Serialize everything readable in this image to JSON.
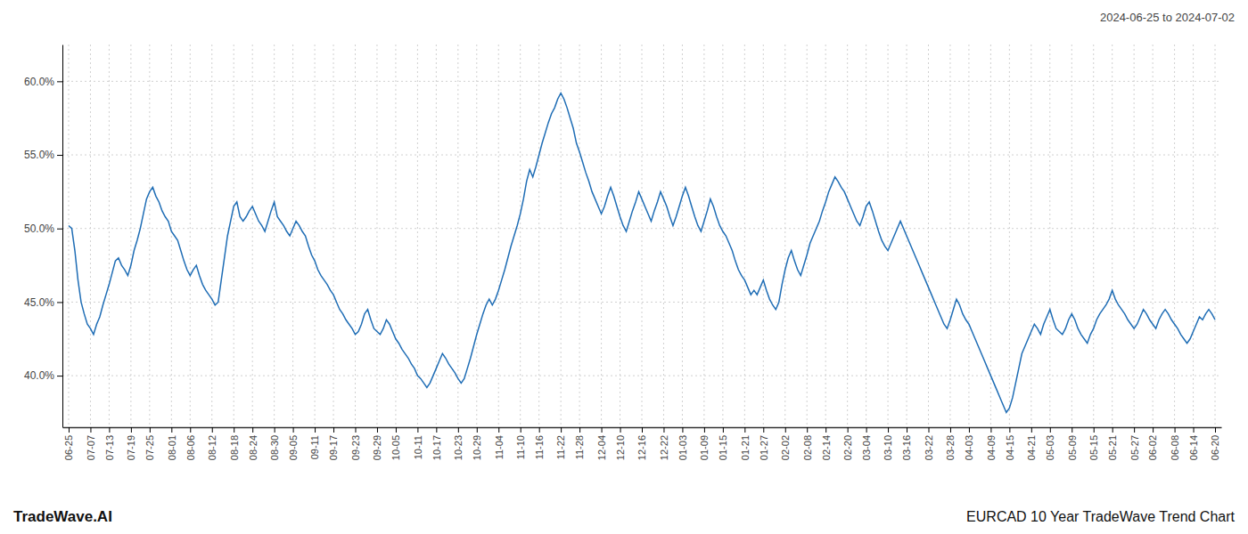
{
  "chart_data": {
    "type": "line",
    "title": "EURCAD 10 Year TradeWave Trend Chart",
    "subtitle": "2024-06-25 to 2024-07-02",
    "annotations": [
      "TradeWave.AI"
    ],
    "color": "#1f6db5",
    "grid": true,
    "ylim": [
      36.5,
      62.5
    ],
    "yticks": [
      {
        "value": 40.0,
        "label": "40.0%"
      },
      {
        "value": 45.0,
        "label": "45.0%"
      },
      {
        "value": 50.0,
        "label": "50.0%"
      },
      {
        "value": 55.0,
        "label": "55.0%"
      },
      {
        "value": 60.0,
        "label": "60.0%"
      }
    ],
    "categories": [
      "06-25",
      null,
      null,
      null,
      null,
      null,
      null,
      "07-07",
      null,
      null,
      null,
      null,
      null,
      "07-13",
      null,
      null,
      null,
      null,
      null,
      null,
      "07-19",
      null,
      null,
      null,
      null,
      null,
      "07-25",
      null,
      null,
      null,
      null,
      null,
      null,
      "08-01",
      null,
      null,
      null,
      null,
      null,
      "08-06",
      null,
      null,
      null,
      null,
      null,
      null,
      "08-12",
      null,
      null,
      null,
      null,
      null,
      null,
      "08-18",
      null,
      null,
      null,
      null,
      null,
      "08-24",
      null,
      null,
      null,
      null,
      null,
      null,
      "08-30",
      null,
      null,
      null,
      null,
      null,
      "09-05",
      null,
      null,
      null,
      null,
      null,
      null,
      "09-11",
      null,
      null,
      null,
      null,
      null,
      "09-17",
      null,
      null,
      null,
      null,
      null,
      null,
      "09-23",
      null,
      null,
      null,
      null,
      null,
      null,
      "09-29",
      null,
      null,
      null,
      null,
      null,
      "10-05",
      null,
      null,
      null,
      null,
      null,
      null,
      "10-11",
      null,
      null,
      null,
      null,
      null,
      "10-17",
      null,
      null,
      null,
      null,
      null,
      null,
      "10-23",
      null,
      null,
      null,
      null,
      null,
      "10-29",
      null,
      null,
      null,
      null,
      null,
      null,
      "11-04",
      null,
      null,
      null,
      null,
      null,
      null,
      "11-10",
      null,
      null,
      null,
      null,
      null,
      "11-16",
      null,
      null,
      null,
      null,
      null,
      null,
      "11-22",
      null,
      null,
      null,
      null,
      null,
      "11-28",
      null,
      null,
      null,
      null,
      null,
      null,
      "12-04",
      null,
      null,
      null,
      null,
      null,
      "12-10",
      null,
      null,
      null,
      null,
      null,
      null,
      "12-16",
      null,
      null,
      null,
      null,
      null,
      null,
      "12-22",
      null,
      null,
      null,
      null,
      null,
      "01-03",
      null,
      null,
      null,
      null,
      null,
      null,
      "01-09",
      null,
      null,
      null,
      null,
      null,
      "01-15",
      null,
      null,
      null,
      null,
      null,
      null,
      "01-21",
      null,
      null,
      null,
      null,
      null,
      "01-27",
      null,
      null,
      null,
      null,
      null,
      null,
      "02-02",
      null,
      null,
      null,
      null,
      null,
      null,
      "02-08",
      null,
      null,
      null,
      null,
      null,
      "02-14",
      null,
      null,
      null,
      null,
      null,
      null,
      "02-20",
      null,
      null,
      null,
      null,
      null,
      "03-04",
      null,
      null,
      null,
      null,
      null,
      null,
      "03-10",
      null,
      null,
      null,
      null,
      null,
      "03-16",
      null,
      null,
      null,
      null,
      null,
      null,
      "03-22",
      null,
      null,
      null,
      null,
      null,
      null,
      "03-28",
      null,
      null,
      null,
      null,
      null,
      "04-03",
      null,
      null,
      null,
      null,
      null,
      null,
      "04-09",
      null,
      null,
      null,
      null,
      null,
      "04-15",
      null,
      null,
      null,
      null,
      null,
      null,
      "04-21",
      null,
      null,
      null,
      null,
      null,
      "05-03",
      null,
      null,
      null,
      null,
      null,
      null,
      "05-09",
      null,
      null,
      null,
      null,
      null,
      null,
      "05-15",
      null,
      null,
      null,
      null,
      null,
      "05-21",
      null,
      null,
      null,
      null,
      null,
      null,
      "05-27",
      null,
      null,
      null,
      null,
      null,
      "06-02",
      null,
      null,
      null,
      null,
      null,
      null,
      "06-08",
      null,
      null,
      null,
      null,
      null,
      "06-14",
      null,
      null,
      null,
      null,
      null,
      null,
      "06-20"
    ],
    "values": [
      50.2,
      50.0,
      48.5,
      46.5,
      45.0,
      44.2,
      43.5,
      43.2,
      42.8,
      43.5,
      44.0,
      44.8,
      45.5,
      46.2,
      47.0,
      47.8,
      48.0,
      47.5,
      47.2,
      46.8,
      47.5,
      48.5,
      49.2,
      50.0,
      51.0,
      52.0,
      52.5,
      52.8,
      52.2,
      51.8,
      51.2,
      50.8,
      50.5,
      49.8,
      49.5,
      49.2,
      48.5,
      47.8,
      47.2,
      46.8,
      47.2,
      47.5,
      46.8,
      46.2,
      45.8,
      45.5,
      45.2,
      44.8,
      45.0,
      46.5,
      48.0,
      49.5,
      50.5,
      51.5,
      51.8,
      50.8,
      50.5,
      50.8,
      51.2,
      51.5,
      51.0,
      50.5,
      50.2,
      49.8,
      50.5,
      51.2,
      51.8,
      50.8,
      50.5,
      50.2,
      49.8,
      49.5,
      50.0,
      50.5,
      50.2,
      49.8,
      49.5,
      48.8,
      48.2,
      47.8,
      47.2,
      46.8,
      46.5,
      46.2,
      45.8,
      45.5,
      45.0,
      44.5,
      44.2,
      43.8,
      43.5,
      43.2,
      42.8,
      43.0,
      43.5,
      44.2,
      44.5,
      43.8,
      43.2,
      43.0,
      42.8,
      43.2,
      43.8,
      43.5,
      43.0,
      42.5,
      42.2,
      41.8,
      41.5,
      41.2,
      40.8,
      40.5,
      40.0,
      39.8,
      39.5,
      39.2,
      39.5,
      40.0,
      40.5,
      41.0,
      41.5,
      41.2,
      40.8,
      40.5,
      40.2,
      39.8,
      39.5,
      39.8,
      40.5,
      41.2,
      42.0,
      42.8,
      43.5,
      44.2,
      44.8,
      45.2,
      44.8,
      45.2,
      45.8,
      46.5,
      47.2,
      48.0,
      48.8,
      49.5,
      50.2,
      51.0,
      52.0,
      53.2,
      54.0,
      53.5,
      54.2,
      55.0,
      55.8,
      56.5,
      57.2,
      57.8,
      58.2,
      58.8,
      59.2,
      58.8,
      58.2,
      57.5,
      56.8,
      55.8,
      55.2,
      54.5,
      53.8,
      53.2,
      52.5,
      52.0,
      51.5,
      51.0,
      51.5,
      52.2,
      52.8,
      52.2,
      51.5,
      50.8,
      50.2,
      49.8,
      50.5,
      51.2,
      51.8,
      52.5,
      52.0,
      51.5,
      51.0,
      50.5,
      51.2,
      51.8,
      52.5,
      52.0,
      51.5,
      50.8,
      50.2,
      50.8,
      51.5,
      52.2,
      52.8,
      52.2,
      51.5,
      50.8,
      50.2,
      49.8,
      50.5,
      51.2,
      52.0,
      51.5,
      50.8,
      50.2,
      49.8,
      49.5,
      49.0,
      48.5,
      47.8,
      47.2,
      46.8,
      46.5,
      46.0,
      45.5,
      45.8,
      45.5,
      46.0,
      46.5,
      45.8,
      45.2,
      44.8,
      44.5,
      45.0,
      46.2,
      47.2,
      48.0,
      48.5,
      47.8,
      47.2,
      46.8,
      47.5,
      48.2,
      49.0,
      49.5,
      50.0,
      50.5,
      51.2,
      51.8,
      52.5,
      53.0,
      53.5,
      53.2,
      52.8,
      52.5,
      52.0,
      51.5,
      51.0,
      50.5,
      50.2,
      50.8,
      51.5,
      51.8,
      51.2,
      50.5,
      49.8,
      49.2,
      48.8,
      48.5,
      49.0,
      49.5,
      50.0,
      50.5,
      50.0,
      49.5,
      49.0,
      48.5,
      48.0,
      47.5,
      47.0,
      46.5,
      46.0,
      45.5,
      45.0,
      44.5,
      44.0,
      43.5,
      43.2,
      43.8,
      44.5,
      45.2,
      44.8,
      44.2,
      43.8,
      43.5,
      43.0,
      42.5,
      42.0,
      41.5,
      41.0,
      40.5,
      40.0,
      39.5,
      39.0,
      38.5,
      38.0,
      37.5,
      37.8,
      38.5,
      39.5,
      40.5,
      41.5,
      42.0,
      42.5,
      43.0,
      43.5,
      43.2,
      42.8,
      43.5,
      44.0,
      44.5,
      43.8,
      43.2,
      43.0,
      42.8,
      43.2,
      43.8,
      44.2,
      43.8,
      43.2,
      42.8,
      42.5,
      42.2,
      42.8,
      43.2,
      43.8,
      44.2,
      44.5,
      44.8,
      45.2,
      45.8,
      45.2,
      44.8,
      44.5,
      44.2,
      43.8,
      43.5,
      43.2,
      43.5,
      44.0,
      44.5,
      44.2,
      43.8,
      43.5,
      43.2,
      43.8,
      44.2,
      44.5,
      44.2,
      43.8,
      43.5,
      43.2,
      42.8,
      42.5,
      42.2,
      42.5,
      43.0,
      43.5,
      44.0,
      43.8,
      44.2,
      44.5,
      44.2,
      43.8
    ]
  }
}
